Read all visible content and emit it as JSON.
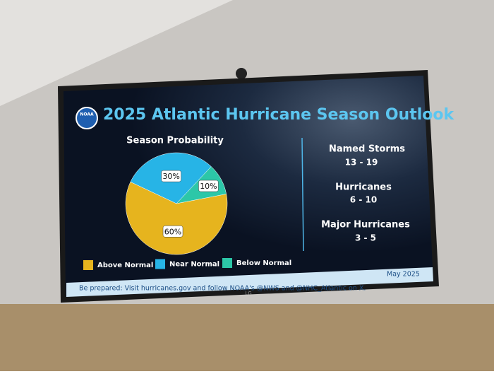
{
  "header": {
    "title": "2025 Atlantic Hurricane Season Outlook",
    "logo": "NOAA"
  },
  "chart_data": {
    "type": "pie",
    "title": "Season Probability",
    "categories": [
      "Above Normal",
      "Near Normal",
      "Below Normal"
    ],
    "values": [
      60,
      30,
      10
    ],
    "value_labels": [
      "60%",
      "30%",
      "10%"
    ],
    "colors": [
      "#e6b41e",
      "#27b4e6",
      "#2cc7a8"
    ]
  },
  "stats": [
    {
      "label": "Named Storms",
      "value": "13 - 19"
    },
    {
      "label": "Hurricanes",
      "value": "6 - 10"
    },
    {
      "label": "Major Hurricanes",
      "value": "3 - 5"
    }
  ],
  "footer": {
    "message": "Be prepared: Visit hurricanes.gov and follow NOAA's @NWS and @NHC_Atlantic on X.",
    "date": "May 2025"
  },
  "brand": "LG"
}
